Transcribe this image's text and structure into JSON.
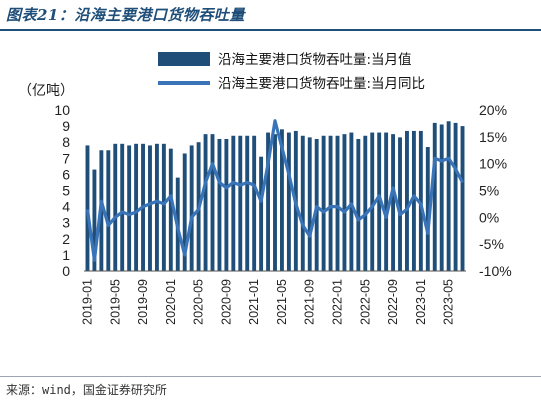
{
  "header": {
    "title": "图表21：沿海主要港口货物吞吐量"
  },
  "footer": {
    "source": "来源：wind，国金证券研究所"
  },
  "colors": {
    "bar": "#1f4e79",
    "line": "#3a74b8",
    "rule": "#1f4e79"
  },
  "chart_data": {
    "type": "bar+line",
    "unit_label": "（亿吨）",
    "legend_position": "top",
    "grid": false,
    "y_left": {
      "min": 0,
      "max": 10,
      "ticks": [
        "0",
        "1",
        "2",
        "3",
        "4",
        "5",
        "6",
        "7",
        "8",
        "9",
        "10"
      ]
    },
    "y_right": {
      "min": -10,
      "max": 20,
      "ticks": [
        "-10%",
        "-5%",
        "0%",
        "5%",
        "10%",
        "15%",
        "20%"
      ]
    },
    "x_tick_labels": [
      "2019-01",
      "2019-05",
      "2019-09",
      "2020-01",
      "2020-05",
      "2020-09",
      "2021-01",
      "2021-05",
      "2021-09",
      "2022-01",
      "2022-05",
      "2022-09",
      "2023-01",
      "2023-05"
    ],
    "x_tick_every": 4,
    "categories": [
      "2019-01",
      "2019-02",
      "2019-03",
      "2019-04",
      "2019-05",
      "2019-06",
      "2019-07",
      "2019-08",
      "2019-09",
      "2019-10",
      "2019-11",
      "2019-12",
      "2020-01",
      "2020-02",
      "2020-03",
      "2020-04",
      "2020-05",
      "2020-06",
      "2020-07",
      "2020-08",
      "2020-09",
      "2020-10",
      "2020-11",
      "2020-12",
      "2021-01",
      "2021-02",
      "2021-03",
      "2021-04",
      "2021-05",
      "2021-06",
      "2021-07",
      "2021-08",
      "2021-09",
      "2021-10",
      "2021-11",
      "2021-12",
      "2022-01",
      "2022-02",
      "2022-03",
      "2022-04",
      "2022-05",
      "2022-06",
      "2022-07",
      "2022-08",
      "2022-09",
      "2022-10",
      "2022-11",
      "2022-12",
      "2023-01",
      "2023-02",
      "2023-03",
      "2023-04",
      "2023-05",
      "2023-06",
      "2023-07"
    ],
    "series": [
      {
        "name": "沿海主要港口货物吞吐量:当月值",
        "kind": "bar",
        "axis": "left",
        "values": [
          7.8,
          6.3,
          7.5,
          7.5,
          7.9,
          7.9,
          7.8,
          7.9,
          7.9,
          7.8,
          7.9,
          7.9,
          7.6,
          5.8,
          7.3,
          7.8,
          8.0,
          8.5,
          8.5,
          8.2,
          8.2,
          8.4,
          8.4,
          8.4,
          8.4,
          7.1,
          8.6,
          8.5,
          8.8,
          8.6,
          8.7,
          8.4,
          8.3,
          8.2,
          8.4,
          8.4,
          8.4,
          8.5,
          8.6,
          8.2,
          8.4,
          8.6,
          8.6,
          8.6,
          8.5,
          8.3,
          8.7,
          8.7,
          8.7,
          7.7,
          9.2,
          9.1,
          9.3,
          9.2,
          9.0
        ]
      },
      {
        "name": "沿海主要港口货物吞吐量:当月同比",
        "kind": "line",
        "axis": "right",
        "values": [
          1.5,
          -8.0,
          3.0,
          -1.5,
          0.0,
          1.0,
          0.5,
          1.0,
          2.0,
          2.5,
          3.0,
          2.5,
          4.0,
          -2.0,
          -7.0,
          0.0,
          1.5,
          6.5,
          10.0,
          6.5,
          5.5,
          6.5,
          6.0,
          6.5,
          6.0,
          3.0,
          10.0,
          18.0,
          13.0,
          8.0,
          2.5,
          -1.5,
          -3.5,
          2.0,
          1.0,
          2.0,
          2.0,
          1.0,
          2.5,
          -0.5,
          0.5,
          2.0,
          4.0,
          0.0,
          5.5,
          0.5,
          1.5,
          4.0,
          2.5,
          -3.0,
          11.0,
          10.5,
          11.0,
          9.0,
          6.5
        ]
      }
    ]
  }
}
